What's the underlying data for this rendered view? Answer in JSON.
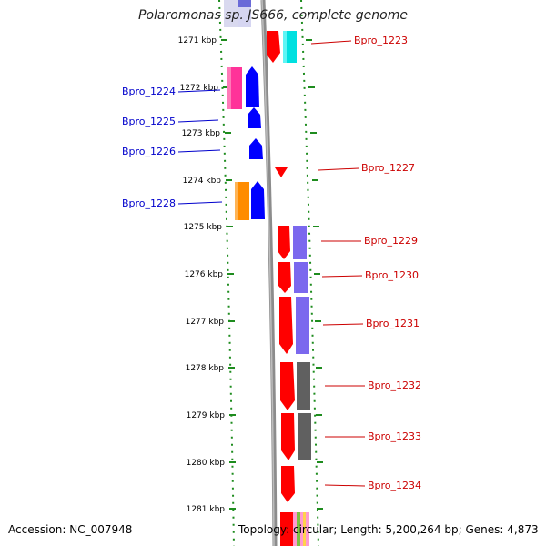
{
  "title": "Polaromonas sp. JS666, complete genome",
  "footer": {
    "accession": "Accession: NC_007948",
    "stats": "Topology: circular; Length: 5,200,264 bp; Genes: 4,873"
  },
  "scale": {
    "ticks": [
      {
        "label": "1271 kbp"
      },
      {
        "label": "1272 kbp"
      },
      {
        "label": "1273 kbp"
      },
      {
        "label": "1274 kbp"
      },
      {
        "label": "1275 kbp"
      },
      {
        "label": "1276 kbp"
      },
      {
        "label": "1277 kbp"
      },
      {
        "label": "1278 kbp"
      },
      {
        "label": "1279 kbp"
      },
      {
        "label": "1280 kbp"
      },
      {
        "label": "1281 kbp"
      }
    ]
  },
  "gene_labels_left": [
    {
      "name": "Bpro_1224"
    },
    {
      "name": "Bpro_1225"
    },
    {
      "name": "Bpro_1226"
    },
    {
      "name": "Bpro_1228"
    }
  ],
  "gene_labels_right": [
    {
      "name": "Bpro_1223"
    },
    {
      "name": "Bpro_1227"
    },
    {
      "name": "Bpro_1229"
    },
    {
      "name": "Bpro_1230"
    },
    {
      "name": "Bpro_1231"
    },
    {
      "name": "Bpro_1232"
    },
    {
      "name": "Bpro_1233"
    },
    {
      "name": "Bpro_1234"
    }
  ],
  "colors": {
    "backbone": "#8c8c8c",
    "tick": "#1e8c1e",
    "label_left": "#0000cc",
    "label_right": "#cc0000",
    "gene_forward": "#ff0000",
    "gene_reverse": "#0000ff",
    "cog_cyan": "#00e0e0",
    "cog_magenta": "#ff3399",
    "cog_orange": "#ff8c00",
    "cog_purple": "#7b68ee",
    "cog_gray": "#606060"
  }
}
